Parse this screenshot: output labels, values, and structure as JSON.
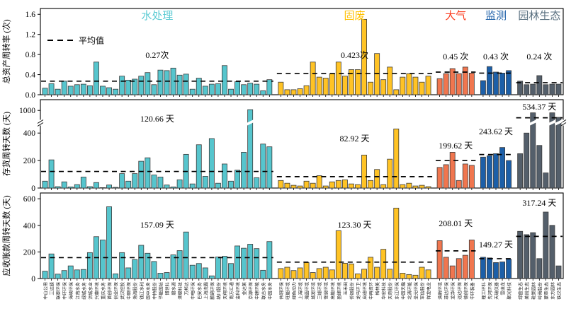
{
  "figure": {
    "legend_label": "平均值",
    "background": "#FFFFFF"
  },
  "groups": [
    {
      "id": "water",
      "label": "水处理",
      "bar_color": "#56C5CD",
      "label_color": "#5BCBD3"
    },
    {
      "id": "solid-waste",
      "label": "固废",
      "bar_color": "#FFC325",
      "label_color": "#FFC000"
    },
    {
      "id": "air",
      "label": "大气",
      "bar_color": "#F0764F",
      "label_color": "#FA3B1D"
    },
    {
      "id": "monitoring",
      "label": "监测",
      "bar_color": "#1C5FA8",
      "label_color": "#1C5FA8"
    },
    {
      "id": "ecology",
      "label": "园林生态",
      "bar_color": "#545F6B",
      "label_color": "#5A7080"
    }
  ],
  "companies": {
    "water": [
      "中山公用",
      "三达膜",
      "联泰环保",
      "中环环保",
      "海峡环保",
      "江南水务",
      "绿城水务",
      "洪城水业",
      "兴蓉环境",
      "重庆水务",
      "首创环保",
      "创业环保",
      "武汉控股",
      "中原环保",
      "渤海股份",
      "钱江水利",
      "国中水务",
      "中持股份",
      "节能国祯",
      "博世科",
      "碧水源",
      "津膜科技",
      "万邦达",
      "中电环保",
      "巴安水务",
      "上海洗霸",
      "鹏鹞环保",
      "纳川股份",
      "天翔环境",
      "南方汇通",
      "金科环境",
      "金达莱",
      "京源环保",
      "中建环能",
      "联合水务",
      "中国水务"
    ],
    "solid-waste": [
      "伟明环保",
      "旺能环境",
      "绿色动力",
      "上海环境",
      "瀚蓝环境",
      "城发环境",
      "三峰环境",
      "雪浪环境",
      "高能环境",
      "盈峰环境",
      "玉禾田",
      "侨银股份",
      "龙马环卫",
      "启迪环境",
      "中再资环",
      "格林美",
      "华宏科技",
      "天奇股份",
      "东江环保",
      "中国天楹",
      "北清环能",
      "圣元环保",
      "军信股份",
      "祥龙电业"
    ],
    "air": [
      "清新环境",
      "菲达环保",
      "龙净环保",
      "远达环保",
      "德创环保",
      "中环装备"
    ],
    "monitoring": [
      "理工环科",
      "先河环保",
      "天瑞仪器",
      "雪迪龙",
      "聚光科技"
    ],
    "ecology": [
      "绿茵生态",
      "美尚生态",
      "乾景园林",
      "岭南股份",
      "蒙草生态",
      "东方园林",
      "铁汉生态"
    ]
  },
  "chart_data": [
    {
      "id": "total-asset-turnover",
      "type": "bar",
      "ylabel": "总资产周转率 (次)",
      "ylim": [
        0,
        1.6
      ],
      "yticks": [
        "0.0",
        "0.4",
        "0.8",
        "1.2",
        "1.6"
      ],
      "legend": "平均值",
      "series": [
        {
          "group": "water",
          "average": 0.27,
          "average_label": "0.27次",
          "values": [
            0.13,
            0.22,
            0.11,
            0.27,
            0.17,
            0.2,
            0.21,
            0.18,
            0.65,
            0.17,
            0.14,
            0.11,
            0.37,
            0.29,
            0.31,
            0.37,
            0.44,
            0.2,
            0.49,
            0.48,
            0.53,
            0.39,
            0.41,
            0.11,
            0.33,
            0.17,
            0.21,
            0.22,
            0.58,
            0.11,
            0.26,
            0.2,
            0.23,
            0.21,
            0.08,
            0.3
          ]
        },
        {
          "group": "solid-waste",
          "average": 0.423,
          "average_label": "0.423次",
          "values": [
            0.25,
            0.1,
            0.1,
            0.12,
            0.18,
            0.65,
            0.35,
            0.33,
            0.42,
            0.65,
            0.37,
            0.5,
            0.5,
            1.5,
            0.25,
            0.82,
            0.3,
            0.55,
            0.1,
            0.35,
            0.42,
            0.35,
            0.25,
            0.37
          ]
        },
        {
          "group": "air",
          "average": 0.45,
          "average_label": "0.45 次",
          "values": [
            0.32,
            0.42,
            0.52,
            0.42,
            0.55,
            0.43
          ]
        },
        {
          "group": "monitoring",
          "average": 0.43,
          "average_label": "0.43 次",
          "values": [
            0.28,
            0.56,
            0.45,
            0.43,
            0.48
          ]
        },
        {
          "group": "ecology",
          "average": 0.24,
          "average_label": "0.24 次",
          "values": [
            0.27,
            0.2,
            0.21,
            0.38,
            0.2,
            0.21,
            0.21
          ]
        }
      ]
    },
    {
      "id": "inventory-turnover-days",
      "type": "bar",
      "ylabel": "存货周转天数 (天)",
      "broken_axis": {
        "lower_max": 450,
        "upper_tick": 1000
      },
      "yticks": [
        "0",
        "200",
        "400",
        "1000"
      ],
      "series": [
        {
          "group": "water",
          "average": 120.66,
          "average_label": "120.66 天",
          "values": [
            50,
            205,
            10,
            45,
            8,
            25,
            80,
            10,
            40,
            3,
            22,
            5,
            105,
            50,
            105,
            195,
            220,
            95,
            80,
            22,
            8,
            60,
            245,
            30,
            315,
            85,
            360,
            35,
            175,
            50,
            130,
            260,
            1050,
            75,
            320,
            300
          ]
        },
        {
          "group": "solid-waste",
          "average": 82.92,
          "average_label": "82.92 天",
          "values": [
            55,
            35,
            20,
            15,
            50,
            35,
            90,
            15,
            45,
            55,
            60,
            30,
            25,
            240,
            55,
            135,
            25,
            210,
            430,
            25,
            35,
            15,
            20,
            10
          ]
        },
        {
          "group": "air",
          "average": 199.62,
          "average_label": "199.62 天",
          "values": [
            150,
            170,
            260,
            55,
            175,
            165
          ]
        },
        {
          "group": "monitoring",
          "average": 243.62,
          "average_label": "243.62 天",
          "values": [
            225,
            235,
            250,
            295,
            200
          ]
        },
        {
          "group": "ecology",
          "average": 534.37,
          "average_label": "534.37 天",
          "values": [
            250,
            400,
            850,
            310,
            110,
            850,
            560
          ]
        }
      ]
    },
    {
      "id": "receivable-turnover-days",
      "type": "bar",
      "ylabel": "应收账款周转天数 (天)",
      "ylim": [
        0,
        600
      ],
      "yticks": [
        "0",
        "200",
        "400",
        "600"
      ],
      "series": [
        {
          "group": "water",
          "average": 157.09,
          "average_label": "157.09 天",
          "values": [
            55,
            185,
            33,
            60,
            95,
            65,
            68,
            195,
            315,
            290,
            540,
            35,
            195,
            80,
            143,
            250,
            190,
            128,
            40,
            45,
            178,
            210,
            350,
            100,
            113,
            80,
            20,
            162,
            167,
            113,
            245,
            228,
            258,
            225,
            62,
            278
          ]
        },
        {
          "group": "solid-waste",
          "average": 123.3,
          "average_label": "123.30 天",
          "values": [
            75,
            85,
            60,
            80,
            120,
            45,
            75,
            85,
            65,
            360,
            115,
            110,
            35,
            70,
            160,
            85,
            220,
            70,
            530,
            40,
            30,
            25,
            85,
            65
          ]
        },
        {
          "group": "air",
          "average": 208.01,
          "average_label": "208.01 天",
          "values": [
            285,
            160,
            95,
            150,
            175,
            290
          ]
        },
        {
          "group": "monitoring",
          "average": 149.27,
          "average_label": "149.27 天",
          "values": [
            160,
            155,
            120,
            125,
            145
          ]
        },
        {
          "group": "ecology",
          "average": 317.24,
          "average_label": "317.24 天",
          "values": [
            355,
            330,
            345,
            150,
            500,
            400,
            95
          ]
        }
      ]
    }
  ]
}
